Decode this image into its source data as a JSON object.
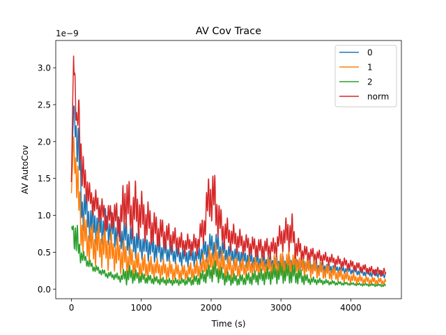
{
  "chart_data": {
    "type": "line",
    "title": "AV Cov Trace",
    "xlabel": "Time (s)",
    "ylabel": "AV AutoCov",
    "y_scale_label": "1e−9",
    "xlim": [
      -225,
      4725
    ],
    "ylim": [
      -0.13,
      3.37
    ],
    "x_ticks": [
      0,
      1000,
      2000,
      3000,
      4000
    ],
    "x_tick_labels": [
      "0",
      "1000",
      "2000",
      "3000",
      "4000"
    ],
    "y_ticks": [
      0.0,
      0.5,
      1.0,
      1.5,
      2.0,
      2.5,
      3.0
    ],
    "y_tick_labels": [
      "0.0",
      "0.5",
      "1.0",
      "1.5",
      "2.0",
      "2.5",
      "3.0"
    ],
    "grid": false,
    "legend_position": "top-right",
    "series": [
      {
        "name": "0",
        "color": "#1f77b4",
        "x": [
          0,
          30,
          60,
          100,
          150,
          200,
          250,
          300,
          400,
          500,
          600,
          700,
          800,
          900,
          1000,
          1200,
          1400,
          1600,
          1800,
          1950,
          2050,
          2200,
          2400,
          2600,
          2800,
          3000,
          3200,
          3400,
          3600,
          3800,
          4000,
          4200,
          4500
        ],
        "values": [
          1.45,
          2.45,
          2.2,
          1.9,
          1.1,
          1.1,
          0.95,
          0.9,
          0.85,
          0.85,
          0.8,
          0.75,
          0.7,
          0.65,
          0.6,
          0.55,
          0.5,
          0.45,
          0.45,
          0.55,
          0.6,
          0.5,
          0.45,
          0.4,
          0.38,
          0.35,
          0.35,
          0.32,
          0.3,
          0.28,
          0.25,
          0.22,
          0.2
        ],
        "osc_amplitude": [
          0.0,
          0.05,
          0.3,
          0.4,
          0.35,
          0.3,
          0.3,
          0.3,
          0.25,
          0.25,
          0.25,
          0.25,
          0.25,
          0.25,
          0.2,
          0.2,
          0.15,
          0.15,
          0.15,
          0.2,
          0.2,
          0.15,
          0.15,
          0.12,
          0.1,
          0.1,
          0.1,
          0.08,
          0.08,
          0.06,
          0.05,
          0.05,
          0.05
        ]
      },
      {
        "name": "1",
        "color": "#ff7f0e",
        "x": [
          0,
          30,
          60,
          100,
          150,
          200,
          300,
          400,
          500,
          600,
          700,
          800,
          900,
          1000,
          1200,
          1400,
          1600,
          1800,
          1950,
          2050,
          2200,
          2400,
          2600,
          2800,
          3000,
          3200,
          3400,
          3600,
          3800,
          4000,
          4200,
          4500
        ],
        "values": [
          1.3,
          2.0,
          1.7,
          1.2,
          0.8,
          0.7,
          0.6,
          0.6,
          0.55,
          0.5,
          0.45,
          0.4,
          0.35,
          0.3,
          0.28,
          0.25,
          0.22,
          0.25,
          0.35,
          0.4,
          0.3,
          0.28,
          0.3,
          0.3,
          0.32,
          0.35,
          0.3,
          0.25,
          0.2,
          0.15,
          0.12,
          0.1
        ],
        "osc_amplitude": [
          0.0,
          0.1,
          0.4,
          0.4,
          0.35,
          0.3,
          0.3,
          0.3,
          0.3,
          0.25,
          0.25,
          0.25,
          0.2,
          0.2,
          0.15,
          0.15,
          0.12,
          0.15,
          0.2,
          0.25,
          0.2,
          0.15,
          0.15,
          0.15,
          0.2,
          0.2,
          0.15,
          0.12,
          0.1,
          0.08,
          0.06,
          0.05
        ]
      },
      {
        "name": "2",
        "color": "#2ca02c",
        "x": [
          0,
          30,
          60,
          100,
          150,
          200,
          300,
          400,
          500,
          600,
          700,
          800,
          900,
          1000,
          1200,
          1400,
          1600,
          1800,
          1950,
          2050,
          2200,
          2400,
          2600,
          2800,
          3000,
          3200,
          3400,
          3600,
          3800,
          4000,
          4200,
          4500
        ],
        "values": [
          0.85,
          0.8,
          0.7,
          0.55,
          0.45,
          0.4,
          0.3,
          0.25,
          0.2,
          0.18,
          0.15,
          0.2,
          0.18,
          0.15,
          0.12,
          0.1,
          0.1,
          0.12,
          0.2,
          0.25,
          0.15,
          0.12,
          0.15,
          0.18,
          0.22,
          0.2,
          0.12,
          0.1,
          0.08,
          0.07,
          0.06,
          0.05
        ],
        "osc_amplitude": [
          0.0,
          0.15,
          0.35,
          0.2,
          0.1,
          0.08,
          0.06,
          0.05,
          0.05,
          0.05,
          0.06,
          0.15,
          0.1,
          0.08,
          0.06,
          0.05,
          0.05,
          0.08,
          0.12,
          0.15,
          0.1,
          0.08,
          0.1,
          0.12,
          0.15,
          0.15,
          0.06,
          0.04,
          0.03,
          0.02,
          0.02,
          0.02
        ]
      },
      {
        "name": "norm",
        "color": "#d62728",
        "x": [
          0,
          30,
          60,
          80,
          100,
          130,
          150,
          200,
          250,
          300,
          400,
          500,
          600,
          700,
          780,
          850,
          900,
          1000,
          1100,
          1200,
          1400,
          1600,
          1800,
          1900,
          1980,
          2050,
          2150,
          2300,
          2500,
          2700,
          2900,
          3000,
          3100,
          3150,
          3200,
          3300,
          3500,
          3700,
          3900,
          4100,
          4300,
          4500
        ],
        "values": [
          1.45,
          3.2,
          2.5,
          2.0,
          2.6,
          2.0,
          1.5,
          1.5,
          1.25,
          1.2,
          1.1,
          0.95,
          1.0,
          0.9,
          1.25,
          1.0,
          1.1,
          1.0,
          0.9,
          0.8,
          0.7,
          0.6,
          0.6,
          0.85,
          1.3,
          1.2,
          0.8,
          0.7,
          0.6,
          0.55,
          0.55,
          0.7,
          0.75,
          0.8,
          0.6,
          0.5,
          0.45,
          0.4,
          0.35,
          0.3,
          0.25,
          0.22
        ],
        "osc_amplitude": [
          0.0,
          0.05,
          0.4,
          0.3,
          0.3,
          0.4,
          0.3,
          0.3,
          0.2,
          0.2,
          0.2,
          0.2,
          0.2,
          0.3,
          0.45,
          0.35,
          0.4,
          0.35,
          0.3,
          0.25,
          0.2,
          0.15,
          0.15,
          0.25,
          0.4,
          0.4,
          0.25,
          0.2,
          0.15,
          0.15,
          0.15,
          0.2,
          0.25,
          0.3,
          0.2,
          0.12,
          0.1,
          0.08,
          0.08,
          0.07,
          0.06,
          0.06
        ]
      }
    ]
  }
}
